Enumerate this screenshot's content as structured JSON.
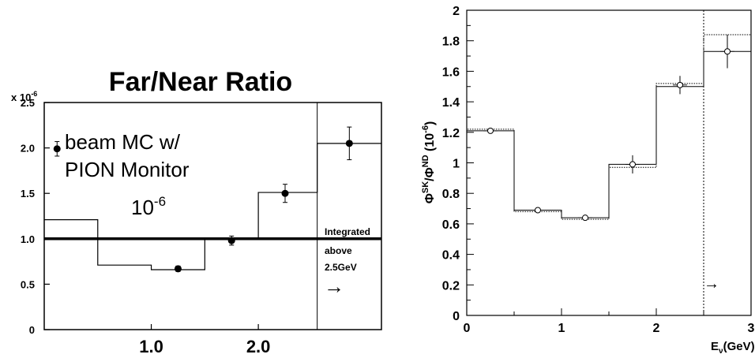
{
  "chart_data": [
    {
      "type": "line",
      "title": "Far/Near Ratio",
      "scale_label": "x 10",
      "scale_label_exp": "-6",
      "annotation_lines": [
        "beam MC w/",
        "PION Monitor"
      ],
      "annotation_value": "10",
      "annotation_value_exp": "-6",
      "integrated_note": [
        "Integrated",
        "above",
        "2.5GeV"
      ],
      "arrow_glyph": "→",
      "x_ticks": [
        {
          "label": "1.0",
          "value": 1.0
        },
        {
          "label": "2.0",
          "value": 2.0
        }
      ],
      "y_ticks": [
        {
          "label": "0",
          "value": 0
        },
        {
          "label": "0.5",
          "value": 0.5
        },
        {
          "label": "1.0",
          "value": 1.0
        },
        {
          "label": "1.5",
          "value": 1.5
        },
        {
          "label": "2.0",
          "value": 2.0
        },
        {
          "label": "2.5",
          "value": 2.5
        }
      ],
      "xlim": [
        0,
        3.15
      ],
      "ylim": [
        0,
        2.5
      ],
      "separator_x": 2.55,
      "reference_line_y": 1.0,
      "histogram": [
        {
          "x0": 0.0,
          "x1": 0.5,
          "y": 1.21
        },
        {
          "x0": 0.5,
          "x1": 1.0,
          "y": 0.71
        },
        {
          "x0": 1.0,
          "x1": 1.5,
          "y": 0.66
        },
        {
          "x0": 1.5,
          "x1": 2.0,
          "y": 1.01
        },
        {
          "x0": 2.0,
          "x1": 2.55,
          "y": 1.51
        },
        {
          "x0": 2.55,
          "x1": 3.15,
          "y": 2.05
        }
      ],
      "points": [
        {
          "x": 0.12,
          "y": 1.99,
          "yerr": 0.08
        },
        {
          "x": 1.25,
          "y": 0.67,
          "yerr": 0.03
        },
        {
          "x": 1.75,
          "y": 0.98,
          "yerr": 0.05
        },
        {
          "x": 2.25,
          "y": 1.5,
          "yerr": 0.1
        },
        {
          "x": 2.85,
          "y": 2.05,
          "yerr": 0.18
        }
      ]
    },
    {
      "type": "line",
      "ylabel": "Φ^SK/Φ^ND (10^-6)",
      "xlabel": "E_ν(GeV)",
      "x_ticks": [
        {
          "label": "0",
          "value": 0
        },
        {
          "label": "1",
          "value": 1
        },
        {
          "label": "2",
          "value": 2
        },
        {
          "label": "3",
          "value": 3
        }
      ],
      "y_ticks": [
        {
          "label": "0",
          "value": 0
        },
        {
          "label": "0.2",
          "value": 0.2
        },
        {
          "label": "0.4",
          "value": 0.4
        },
        {
          "label": "0.6",
          "value": 0.6
        },
        {
          "label": "0.8",
          "value": 0.8
        },
        {
          "label": "1",
          "value": 1.0
        },
        {
          "label": "1.2",
          "value": 1.2
        },
        {
          "label": "1.4",
          "value": 1.4
        },
        {
          "label": "1.6",
          "value": 1.6
        },
        {
          "label": "1.8",
          "value": 1.8
        },
        {
          "label": "2",
          "value": 2.0
        }
      ],
      "xlim": [
        0,
        3
      ],
      "ylim": [
        0,
        2
      ],
      "separator_x": 2.5,
      "arrow_glyph": "→",
      "histogram_solid": [
        {
          "x0": 0.0,
          "x1": 0.5,
          "y": 1.21
        },
        {
          "x0": 0.5,
          "x1": 1.0,
          "y": 0.69
        },
        {
          "x0": 1.0,
          "x1": 1.5,
          "y": 0.64
        },
        {
          "x0": 1.5,
          "x1": 2.0,
          "y": 0.99
        },
        {
          "x0": 2.0,
          "x1": 2.5,
          "y": 1.5
        },
        {
          "x0": 2.5,
          "x1": 3.0,
          "y": 1.73
        }
      ],
      "histogram_dotted": [
        {
          "x0": 0.0,
          "x1": 0.5,
          "y": 1.22
        },
        {
          "x0": 0.5,
          "x1": 1.0,
          "y": 0.68
        },
        {
          "x0": 1.0,
          "x1": 1.5,
          "y": 0.63
        },
        {
          "x0": 1.5,
          "x1": 2.0,
          "y": 0.97
        },
        {
          "x0": 2.0,
          "x1": 2.5,
          "y": 1.52
        },
        {
          "x0": 2.5,
          "x1": 3.0,
          "y": 1.84
        }
      ],
      "points": [
        {
          "x": 0.25,
          "y": 1.21,
          "yerr": 0.01
        },
        {
          "x": 0.75,
          "y": 0.69,
          "yerr": 0.01
        },
        {
          "x": 1.25,
          "y": 0.64,
          "yerr": 0.01
        },
        {
          "x": 1.75,
          "y": 0.99,
          "yerr": 0.06
        },
        {
          "x": 2.25,
          "y": 1.51,
          "yerr": 0.06
        },
        {
          "x": 2.75,
          "y": 1.73,
          "yerr": 0.11
        }
      ]
    }
  ]
}
